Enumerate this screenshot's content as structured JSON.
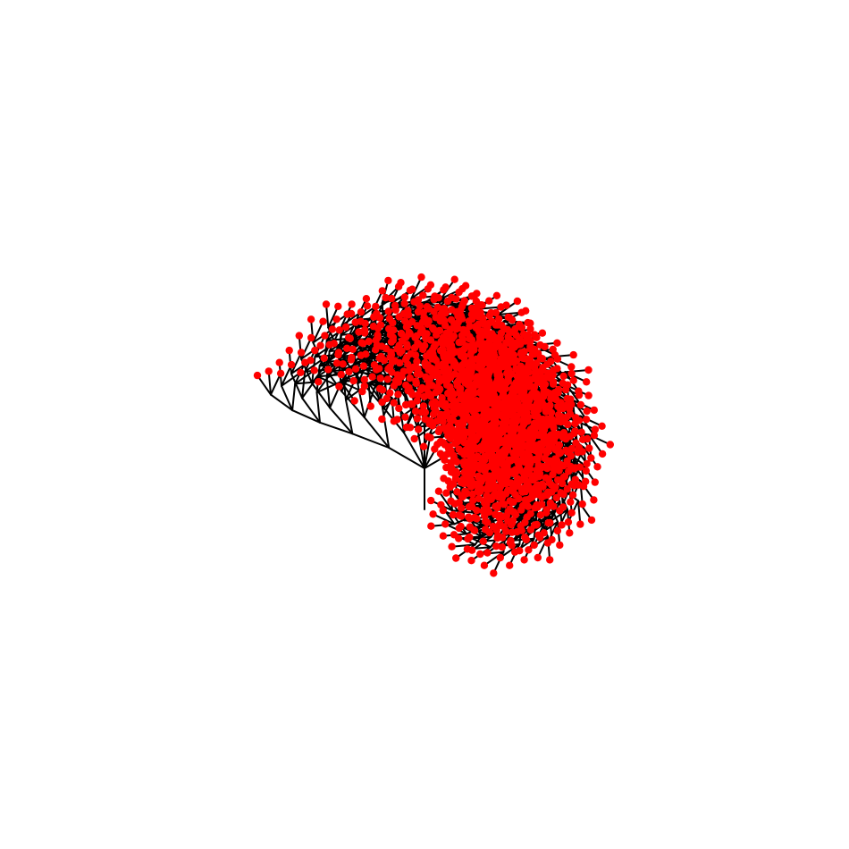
{
  "figure": {
    "description_type": "recursive-branching-tree",
    "background_color": "#ffffff"
  },
  "tree": {
    "depth": 7,
    "branching": 3,
    "stem_angle_deg": 90,
    "spread_deg": 30,
    "turn_deg": 7,
    "length_ratio": 0.88,
    "edge_color": "#000000",
    "node_color": "#ff0000"
  }
}
